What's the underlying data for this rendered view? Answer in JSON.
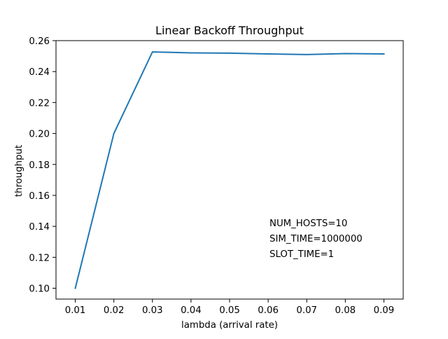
{
  "chart_data": {
    "type": "line",
    "title": "Linear Backoff Throughput",
    "xlabel": "lambda (arrival rate)",
    "ylabel": "throughput",
    "xlim": [
      0.005,
      0.095
    ],
    "ylim": [
      0.093,
      0.26
    ],
    "grid": false,
    "x": [
      0.01,
      0.02,
      0.03,
      0.04,
      0.05,
      0.06,
      0.07,
      0.08,
      0.09
    ],
    "series": [
      {
        "values": [
          0.1,
          0.2,
          0.2527,
          0.2521,
          0.2519,
          0.2514,
          0.251,
          0.2516,
          0.2514
        ],
        "color": "#1f77b4"
      }
    ],
    "xticks": [
      "0.01",
      "0.02",
      "0.03",
      "0.04",
      "0.05",
      "0.06",
      "0.07",
      "0.08",
      "0.09"
    ],
    "yticks": [
      "0.10",
      "0.12",
      "0.14",
      "0.16",
      "0.18",
      "0.20",
      "0.22",
      "0.24",
      "0.26"
    ],
    "annotations": [
      "NUM_HOSTS=10",
      "SIM_TIME=1000000",
      "SLOT_TIME=1"
    ]
  }
}
